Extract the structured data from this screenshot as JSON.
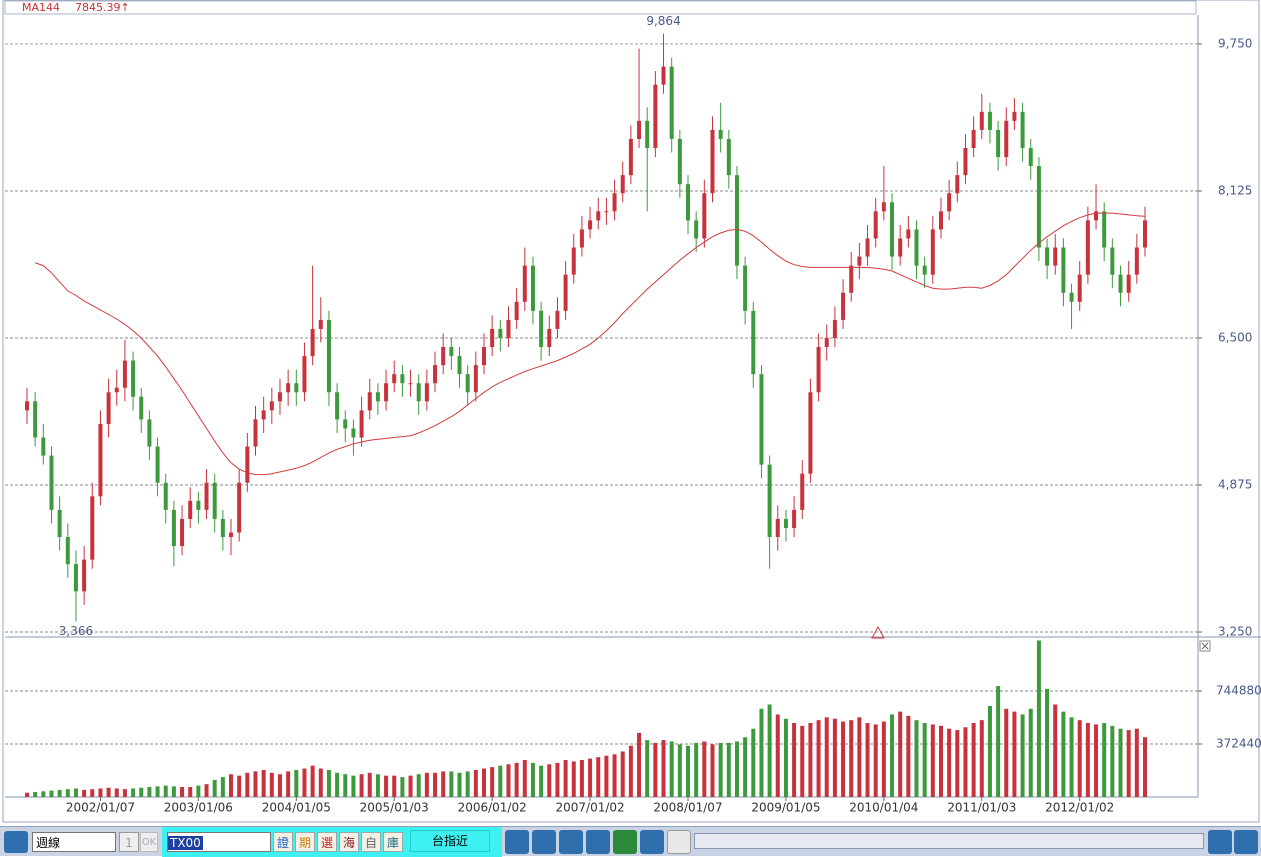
{
  "chart_data": {
    "type": "candlestick",
    "series_name": "MA144",
    "ma_readout": "7845.39↑",
    "up_color": "#c8323c",
    "down_color": "#3c9a3c",
    "ma_color": "#d23c3c",
    "grid": true,
    "dates": [
      "2001/04",
      "2001/05",
      "2001/06",
      "2001/07",
      "2001/08",
      "2001/09",
      "2001/10",
      "2001/11",
      "2001/12",
      "2002/01",
      "2002/02",
      "2002/03",
      "2002/04",
      "2002/05",
      "2002/06",
      "2002/07",
      "2002/08",
      "2002/09",
      "2002/10",
      "2002/11",
      "2002/12",
      "2003/01",
      "2003/02",
      "2003/03",
      "2003/04",
      "2003/05",
      "2003/06",
      "2003/07",
      "2003/08",
      "2003/09",
      "2003/10",
      "2003/11",
      "2003/12",
      "2004/01",
      "2004/02",
      "2004/03",
      "2004/04",
      "2004/05",
      "2004/06",
      "2004/07",
      "2004/08",
      "2004/09",
      "2004/10",
      "2004/11",
      "2004/12",
      "2005/01",
      "2005/02",
      "2005/03",
      "2005/04",
      "2005/05",
      "2005/06",
      "2005/07",
      "2005/08",
      "2005/09",
      "2005/10",
      "2005/11",
      "2005/12",
      "2006/01",
      "2006/02",
      "2006/03",
      "2006/04",
      "2006/05",
      "2006/06",
      "2006/07",
      "2006/08",
      "2006/09",
      "2006/10",
      "2006/11",
      "2006/12",
      "2007/01",
      "2007/02",
      "2007/03",
      "2007/04",
      "2007/05",
      "2007/06",
      "2007/07",
      "2007/08",
      "2007/09",
      "2007/10",
      "2007/11",
      "2007/12",
      "2008/01",
      "2008/02",
      "2008/03",
      "2008/04",
      "2008/05",
      "2008/06",
      "2008/07",
      "2008/08",
      "2008/09",
      "2008/10",
      "2008/11",
      "2008/12",
      "2009/01",
      "2009/02",
      "2009/03",
      "2009/04",
      "2009/05",
      "2009/06",
      "2009/07",
      "2009/08",
      "2009/09",
      "2009/10",
      "2009/11",
      "2009/12",
      "2010/01",
      "2010/02",
      "2010/03",
      "2010/04",
      "2010/05",
      "2010/06",
      "2010/07",
      "2010/08",
      "2010/09",
      "2010/10",
      "2010/11",
      "2010/12",
      "2011/01",
      "2011/02",
      "2011/03",
      "2011/04",
      "2011/05",
      "2011/06",
      "2011/07",
      "2011/08",
      "2011/09",
      "2011/10",
      "2011/11",
      "2011/12",
      "2012/01",
      "2012/02",
      "2012/03",
      "2012/04",
      "2012/05",
      "2012/06",
      "2012/07",
      "2012/08",
      "2012/09"
    ],
    "candles": [
      [
        5700,
        5950,
        5550,
        5800
      ],
      [
        5800,
        5900,
        5300,
        5400
      ],
      [
        5400,
        5550,
        5100,
        5200
      ],
      [
        5200,
        5300,
        4450,
        4600
      ],
      [
        4600,
        4750,
        4150,
        4300
      ],
      [
        4300,
        4450,
        3850,
        4000
      ],
      [
        4000,
        4150,
        3366,
        3700
      ],
      [
        3700,
        4200,
        3550,
        4050
      ],
      [
        4050,
        4900,
        3950,
        4750
      ],
      [
        4750,
        5700,
        4650,
        5550
      ],
      [
        5550,
        6050,
        5400,
        5900
      ],
      [
        5900,
        6150,
        5750,
        5950
      ],
      [
        5950,
        6480,
        5800,
        6250
      ],
      [
        6250,
        6350,
        5700,
        5850
      ],
      [
        5850,
        5950,
        5450,
        5600
      ],
      [
        5600,
        5700,
        5150,
        5300
      ],
      [
        5300,
        5400,
        4750,
        4900
      ],
      [
        4900,
        5000,
        4450,
        4600
      ],
      [
        4600,
        4700,
        3980,
        4200
      ],
      [
        4200,
        4650,
        4100,
        4500
      ],
      [
        4500,
        4850,
        4400,
        4700
      ],
      [
        4700,
        4800,
        4450,
        4600
      ],
      [
        4600,
        5050,
        4500,
        4900
      ],
      [
        4900,
        5000,
        4350,
        4500
      ],
      [
        4500,
        4600,
        4150,
        4300
      ],
      [
        4300,
        4500,
        4100,
        4350
      ],
      [
        4350,
        5050,
        4250,
        4900
      ],
      [
        4900,
        5450,
        4800,
        5300
      ],
      [
        5300,
        5750,
        5200,
        5600
      ],
      [
        5600,
        5850,
        5450,
        5700
      ],
      [
        5700,
        5950,
        5550,
        5800
      ],
      [
        5800,
        6050,
        5650,
        5900
      ],
      [
        5900,
        6150,
        5750,
        6000
      ],
      [
        6000,
        6150,
        5750,
        5900
      ],
      [
        5900,
        6450,
        5800,
        6300
      ],
      [
        6300,
        7300,
        6200,
        6600
      ],
      [
        6600,
        6950,
        6450,
        6700
      ],
      [
        6700,
        6800,
        5750,
        5900
      ],
      [
        5900,
        6000,
        5450,
        5600
      ],
      [
        5600,
        5700,
        5350,
        5500
      ],
      [
        5500,
        5600,
        5200,
        5400
      ],
      [
        5400,
        5850,
        5300,
        5700
      ],
      [
        5700,
        6050,
        5600,
        5900
      ],
      [
        5900,
        6000,
        5650,
        5800
      ],
      [
        5800,
        6150,
        5700,
        6000
      ],
      [
        6000,
        6250,
        5900,
        6100
      ],
      [
        6100,
        6200,
        5850,
        6000
      ],
      [
        6000,
        6150,
        5850,
        6000
      ],
      [
        6000,
        6100,
        5650,
        5800
      ],
      [
        5800,
        6150,
        5700,
        6000
      ],
      [
        6000,
        6350,
        5900,
        6200
      ],
      [
        6200,
        6550,
        6100,
        6400
      ],
      [
        6400,
        6500,
        6150,
        6300
      ],
      [
        6300,
        6400,
        5950,
        6100
      ],
      [
        6100,
        6200,
        5750,
        5900
      ],
      [
        5900,
        6350,
        5800,
        6200
      ],
      [
        6200,
        6550,
        6100,
        6400
      ],
      [
        6400,
        6750,
        6300,
        6600
      ],
      [
        6600,
        6700,
        6350,
        6500
      ],
      [
        6500,
        6850,
        6400,
        6700
      ],
      [
        6700,
        7050,
        6600,
        6900
      ],
      [
        6900,
        7500,
        6800,
        7300
      ],
      [
        7300,
        7400,
        6650,
        6800
      ],
      [
        6800,
        6900,
        6250,
        6400
      ],
      [
        6400,
        6750,
        6300,
        6600
      ],
      [
        6600,
        6950,
        6500,
        6800
      ],
      [
        6800,
        7350,
        6700,
        7200
      ],
      [
        7200,
        7650,
        7100,
        7500
      ],
      [
        7500,
        7850,
        7400,
        7700
      ],
      [
        7700,
        7950,
        7600,
        7800
      ],
      [
        7800,
        8050,
        7700,
        7900
      ],
      [
        7900,
        8050,
        7750,
        7900
      ],
      [
        7900,
        8250,
        7800,
        8100
      ],
      [
        8100,
        8450,
        8000,
        8300
      ],
      [
        8300,
        8850,
        8200,
        8700
      ],
      [
        8700,
        9700,
        8600,
        8900
      ],
      [
        8900,
        9050,
        7900,
        8600
      ],
      [
        8600,
        9450,
        8500,
        9300
      ],
      [
        9300,
        9864,
        9200,
        9500
      ],
      [
        9500,
        9600,
        8550,
        8700
      ],
      [
        8700,
        8800,
        8050,
        8200
      ],
      [
        8200,
        8300,
        7650,
        7800
      ],
      [
        7800,
        7900,
        7450,
        7600
      ],
      [
        7600,
        8250,
        7500,
        8100
      ],
      [
        8100,
        8950,
        8000,
        8800
      ],
      [
        8800,
        9100,
        8550,
        8700
      ],
      [
        8700,
        8800,
        8150,
        8300
      ],
      [
        8300,
        8400,
        7150,
        7300
      ],
      [
        7300,
        7400,
        6650,
        6800
      ],
      [
        6800,
        6900,
        5950,
        6100
      ],
      [
        6100,
        6200,
        4950,
        5100
      ],
      [
        5100,
        5200,
        3950,
        4300
      ],
      [
        4300,
        4650,
        4150,
        4500
      ],
      [
        4500,
        4600,
        4250,
        4400
      ],
      [
        4400,
        4750,
        4300,
        4600
      ],
      [
        4600,
        5150,
        4500,
        5000
      ],
      [
        5000,
        6050,
        4900,
        5900
      ],
      [
        5900,
        6550,
        5800,
        6400
      ],
      [
        6400,
        6650,
        6250,
        6500
      ],
      [
        6500,
        6850,
        6400,
        6700
      ],
      [
        6700,
        7150,
        6600,
        7000
      ],
      [
        7000,
        7450,
        6900,
        7300
      ],
      [
        7300,
        7550,
        7150,
        7400
      ],
      [
        7400,
        7750,
        7300,
        7600
      ],
      [
        7600,
        8050,
        7500,
        7900
      ],
      [
        7900,
        8400,
        7800,
        8000
      ],
      [
        8000,
        8100,
        7250,
        7400
      ],
      [
        7400,
        7750,
        7300,
        7600
      ],
      [
        7600,
        7850,
        7500,
        7700
      ],
      [
        7700,
        7800,
        7150,
        7300
      ],
      [
        7300,
        7400,
        7050,
        7200
      ],
      [
        7200,
        7850,
        7100,
        7700
      ],
      [
        7700,
        8050,
        7600,
        7900
      ],
      [
        7900,
        8250,
        7800,
        8100
      ],
      [
        8100,
        8450,
        8000,
        8300
      ],
      [
        8300,
        8750,
        8200,
        8600
      ],
      [
        8600,
        8950,
        8500,
        8800
      ],
      [
        8800,
        9200,
        8700,
        9000
      ],
      [
        9000,
        9100,
        8650,
        8800
      ],
      [
        8800,
        8900,
        8350,
        8500
      ],
      [
        8500,
        9050,
        8400,
        8900
      ],
      [
        8900,
        9150,
        8800,
        9000
      ],
      [
        9000,
        9100,
        8450,
        8600
      ],
      [
        8600,
        8700,
        8250,
        8400
      ],
      [
        8400,
        8500,
        7350,
        7500
      ],
      [
        7500,
        7600,
        7150,
        7300
      ],
      [
        7300,
        7650,
        7200,
        7500
      ],
      [
        7500,
        7600,
        6850,
        7000
      ],
      [
        7000,
        7100,
        6600,
        6900
      ],
      [
        6900,
        7350,
        6800,
        7200
      ],
      [
        7200,
        7950,
        7100,
        7800
      ],
      [
        7800,
        8200,
        7700,
        7900
      ],
      [
        7900,
        8000,
        7350,
        7500
      ],
      [
        7500,
        7600,
        7050,
        7200
      ],
      [
        7200,
        7300,
        6850,
        7000
      ],
      [
        7000,
        7350,
        6900,
        7200
      ],
      [
        7200,
        7650,
        7100,
        7500
      ],
      [
        7500,
        7950,
        7400,
        7800
      ]
    ],
    "ma": [
      null,
      7330,
      7300,
      7220,
      7120,
      7020,
      6970,
      6910,
      6860,
      6810,
      6760,
      6710,
      6650,
      6580,
      6500,
      6400,
      6300,
      6180,
      6050,
      5920,
      5780,
      5640,
      5500,
      5360,
      5230,
      5120,
      5050,
      5010,
      4990,
      4990,
      5000,
      5020,
      5040,
      5060,
      5090,
      5130,
      5180,
      5230,
      5270,
      5300,
      5330,
      5350,
      5370,
      5380,
      5390,
      5400,
      5410,
      5420,
      5450,
      5490,
      5530,
      5580,
      5630,
      5690,
      5760,
      5830,
      5900,
      5960,
      6010,
      6050,
      6090,
      6130,
      6160,
      6190,
      6220,
      6250,
      6290,
      6330,
      6380,
      6430,
      6500,
      6580,
      6670,
      6770,
      6860,
      6950,
      7040,
      7120,
      7200,
      7280,
      7360,
      7430,
      7500,
      7560,
      7620,
      7660,
      7690,
      7700,
      7680,
      7630,
      7560,
      7480,
      7410,
      7350,
      7310,
      7290,
      7280,
      7280,
      7280,
      7280,
      7280,
      7280,
      7280,
      7280,
      7270,
      7260,
      7240,
      7200,
      7160,
      7120,
      7080,
      7050,
      7040,
      7040,
      7050,
      7060,
      7060,
      7050,
      7080,
      7130,
      7200,
      7290,
      7380,
      7470,
      7550,
      7620,
      7680,
      7740,
      7790,
      7830,
      7860,
      7880,
      7880,
      7880,
      7870,
      7860,
      7850,
      7845.39
    ],
    "volume": [
      30000,
      35000,
      40000,
      45000,
      50000,
      55000,
      60000,
      50000,
      55000,
      60000,
      65000,
      60000,
      55000,
      60000,
      65000,
      70000,
      75000,
      80000,
      75000,
      70000,
      70000,
      80000,
      90000,
      120000,
      140000,
      160000,
      150000,
      170000,
      180000,
      190000,
      170000,
      160000,
      180000,
      190000,
      200000,
      220000,
      200000,
      190000,
      170000,
      160000,
      150000,
      160000,
      170000,
      160000,
      150000,
      150000,
      140000,
      150000,
      160000,
      170000,
      170000,
      180000,
      180000,
      170000,
      180000,
      190000,
      200000,
      210000,
      220000,
      230000,
      240000,
      260000,
      240000,
      220000,
      230000,
      240000,
      260000,
      250000,
      260000,
      270000,
      280000,
      290000,
      300000,
      320000,
      360000,
      450000,
      400000,
      380000,
      400000,
      390000,
      370000,
      360000,
      380000,
      390000,
      370000,
      380000,
      380000,
      390000,
      420000,
      480000,
      620000,
      650000,
      580000,
      550000,
      520000,
      500000,
      520000,
      540000,
      560000,
      550000,
      530000,
      540000,
      560000,
      520000,
      510000,
      530000,
      580000,
      600000,
      570000,
      540000,
      520000,
      510000,
      500000,
      480000,
      470000,
      490000,
      520000,
      540000,
      640000,
      780000,
      620000,
      600000,
      580000,
      620000,
      1100000,
      760000,
      650000,
      600000,
      560000,
      540000,
      520000,
      510000,
      520000,
      500000,
      480000,
      470000,
      480000,
      420000
    ],
    "ylim": [
      3195,
      10070
    ],
    "yticks": [
      {
        "value": 3250,
        "label": "3,250"
      },
      {
        "value": 4875,
        "label": "4,875"
      },
      {
        "value": 6500,
        "label": "6,500"
      },
      {
        "value": 8125,
        "label": "8,125"
      },
      {
        "value": 9750,
        "label": "9,750"
      }
    ],
    "volume_ylim": [
      0,
      1117320
    ],
    "volume_yticks": [
      372440,
      744880
    ],
    "xticks": [
      {
        "value": "2002/01",
        "label": "2002/01/07"
      },
      {
        "value": "2003/01",
        "label": "2003/01/06"
      },
      {
        "value": "2004/01",
        "label": "2004/01/05"
      },
      {
        "value": "2005/01",
        "label": "2005/01/03"
      },
      {
        "value": "2006/01",
        "label": "2006/01/02"
      },
      {
        "value": "2007/01",
        "label": "2007/01/02"
      },
      {
        "value": "2008/01",
        "label": "2008/01/07"
      },
      {
        "value": "2009/01",
        "label": "2009/01/05"
      },
      {
        "value": "2010/01",
        "label": "2010/01/04"
      },
      {
        "value": "2011/01",
        "label": "2011/01/03"
      },
      {
        "value": "2012/01",
        "label": "2012/01/02"
      }
    ],
    "annotations": [
      {
        "x": "2007/10",
        "label": "9,864",
        "at": "high"
      },
      {
        "x": "2001/10",
        "label": "3,366",
        "at": "low"
      }
    ]
  },
  "toolbar": {
    "period": "週線",
    "count": "1",
    "ok": "OK",
    "symbol": "TX00",
    "buttons": [
      "證",
      "期",
      "選",
      "海",
      "自",
      "庫"
    ],
    "quote": "台指近"
  }
}
